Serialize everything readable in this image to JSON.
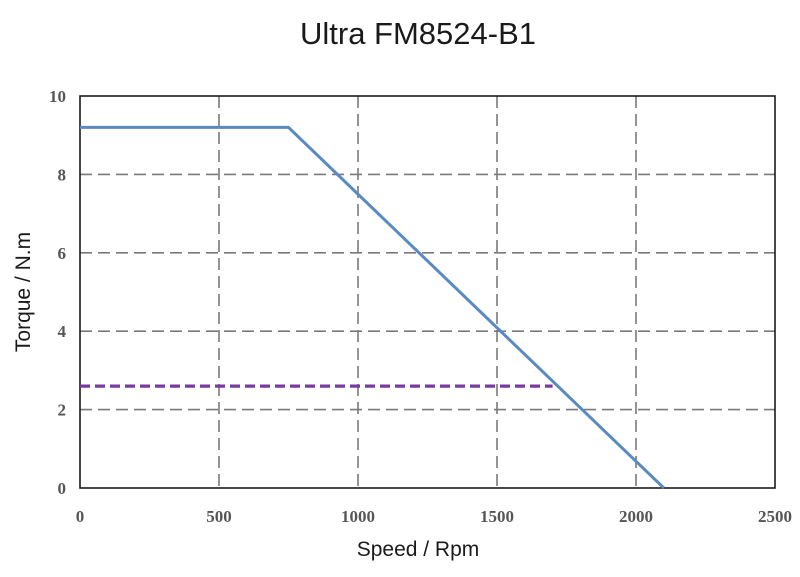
{
  "chart_data": {
    "type": "line",
    "title": "Ultra FM8524-B1",
    "xlabel": "Speed / Rpm",
    "ylabel": "Torque / N.m",
    "xlim": [
      0,
      2500
    ],
    "ylim": [
      0,
      10
    ],
    "x_ticks": [
      "0",
      "500",
      "1000",
      "1500",
      "2000",
      "2500"
    ],
    "y_ticks": [
      "0",
      "2",
      "4",
      "6",
      "8",
      "10"
    ],
    "x_tick_values": [
      0,
      500,
      1000,
      1500,
      2000,
      2500
    ],
    "y_tick_values": [
      0,
      2,
      4,
      6,
      8,
      10
    ],
    "grid": true,
    "series": [
      {
        "color": "#5b8ac0",
        "style": "solid",
        "points": [
          [
            0,
            9.2
          ],
          [
            750,
            9.2
          ],
          [
            2100,
            0
          ]
        ]
      },
      {
        "color": "#7a3aa0",
        "style": "dashed",
        "points": [
          [
            0,
            2.6
          ],
          [
            1700,
            2.6
          ]
        ]
      }
    ]
  }
}
